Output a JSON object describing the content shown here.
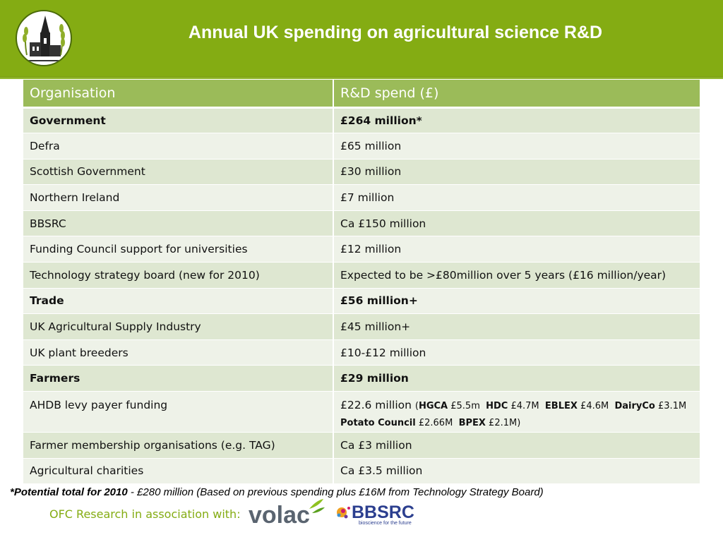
{
  "header": {
    "title": "Annual UK spending on agricultural science R&D",
    "logo_icon": "church-wheat-logo-icon",
    "band_color": "#84ac13"
  },
  "table": {
    "headers": [
      "Organisation",
      "R&D spend (£)"
    ],
    "rows": [
      {
        "org": "Government",
        "spend": "£264 million*"
      },
      {
        "org": "Defra",
        "spend": "£65 million"
      },
      {
        "org": "Scottish Government",
        "spend": "£30 million"
      },
      {
        "org": "Northern Ireland",
        "spend": "£7 million"
      },
      {
        "org": "BBSRC",
        "spend": "Ca £150  million"
      },
      {
        "org": "Funding Council support for universities",
        "spend": "£12 million"
      },
      {
        "org": "Technology strategy board (new for 2010)",
        "spend": "Expected to be >£80million over 5 years (£16 million/year)"
      },
      {
        "org": "Trade",
        "spend": "£56 million+"
      },
      {
        "org": "UK Agricultural Supply Industry",
        "spend": "£45 million+"
      },
      {
        "org": "UK plant breeders",
        "spend": "£10-£12 million"
      },
      {
        "org": "Farmers",
        "spend": "£29 million"
      },
      {
        "org": "AHDB levy payer funding",
        "spend": "£22.6 million",
        "detail": {
          "open": "(",
          "items": [
            {
              "name": "HGCA",
              "value": "£5.5m"
            },
            {
              "name": "HDC",
              "value": "£4.7M"
            },
            {
              "name": "EBLEX",
              "value": "£4.6M"
            },
            {
              "name": "DairyCo",
              "value": "£3.1M"
            },
            {
              "name": "Potato Council",
              "value": "£2.66M"
            },
            {
              "name": "BPEX",
              "value": "£2.1M"
            }
          ],
          "close": ")"
        }
      },
      {
        "org": "Farmer membership organisations (e.g. TAG)",
        "spend": "Ca £3 million"
      },
      {
        "org": "Agricultural charities",
        "spend": "Ca £3.5 million"
      }
    ]
  },
  "footnote": {
    "bold_part": "*Potential total for 2010",
    "rest": " - £280 million (Based on previous spending plus £16M from Technology Strategy Board)"
  },
  "credit": {
    "text": "OFC Research in association with:",
    "logos": [
      {
        "icon": "volac-logo-icon",
        "text": "volac"
      },
      {
        "icon": "bbsrc-logo-icon",
        "text": "BBSRC",
        "tagline": "bioscience for the future"
      }
    ]
  }
}
